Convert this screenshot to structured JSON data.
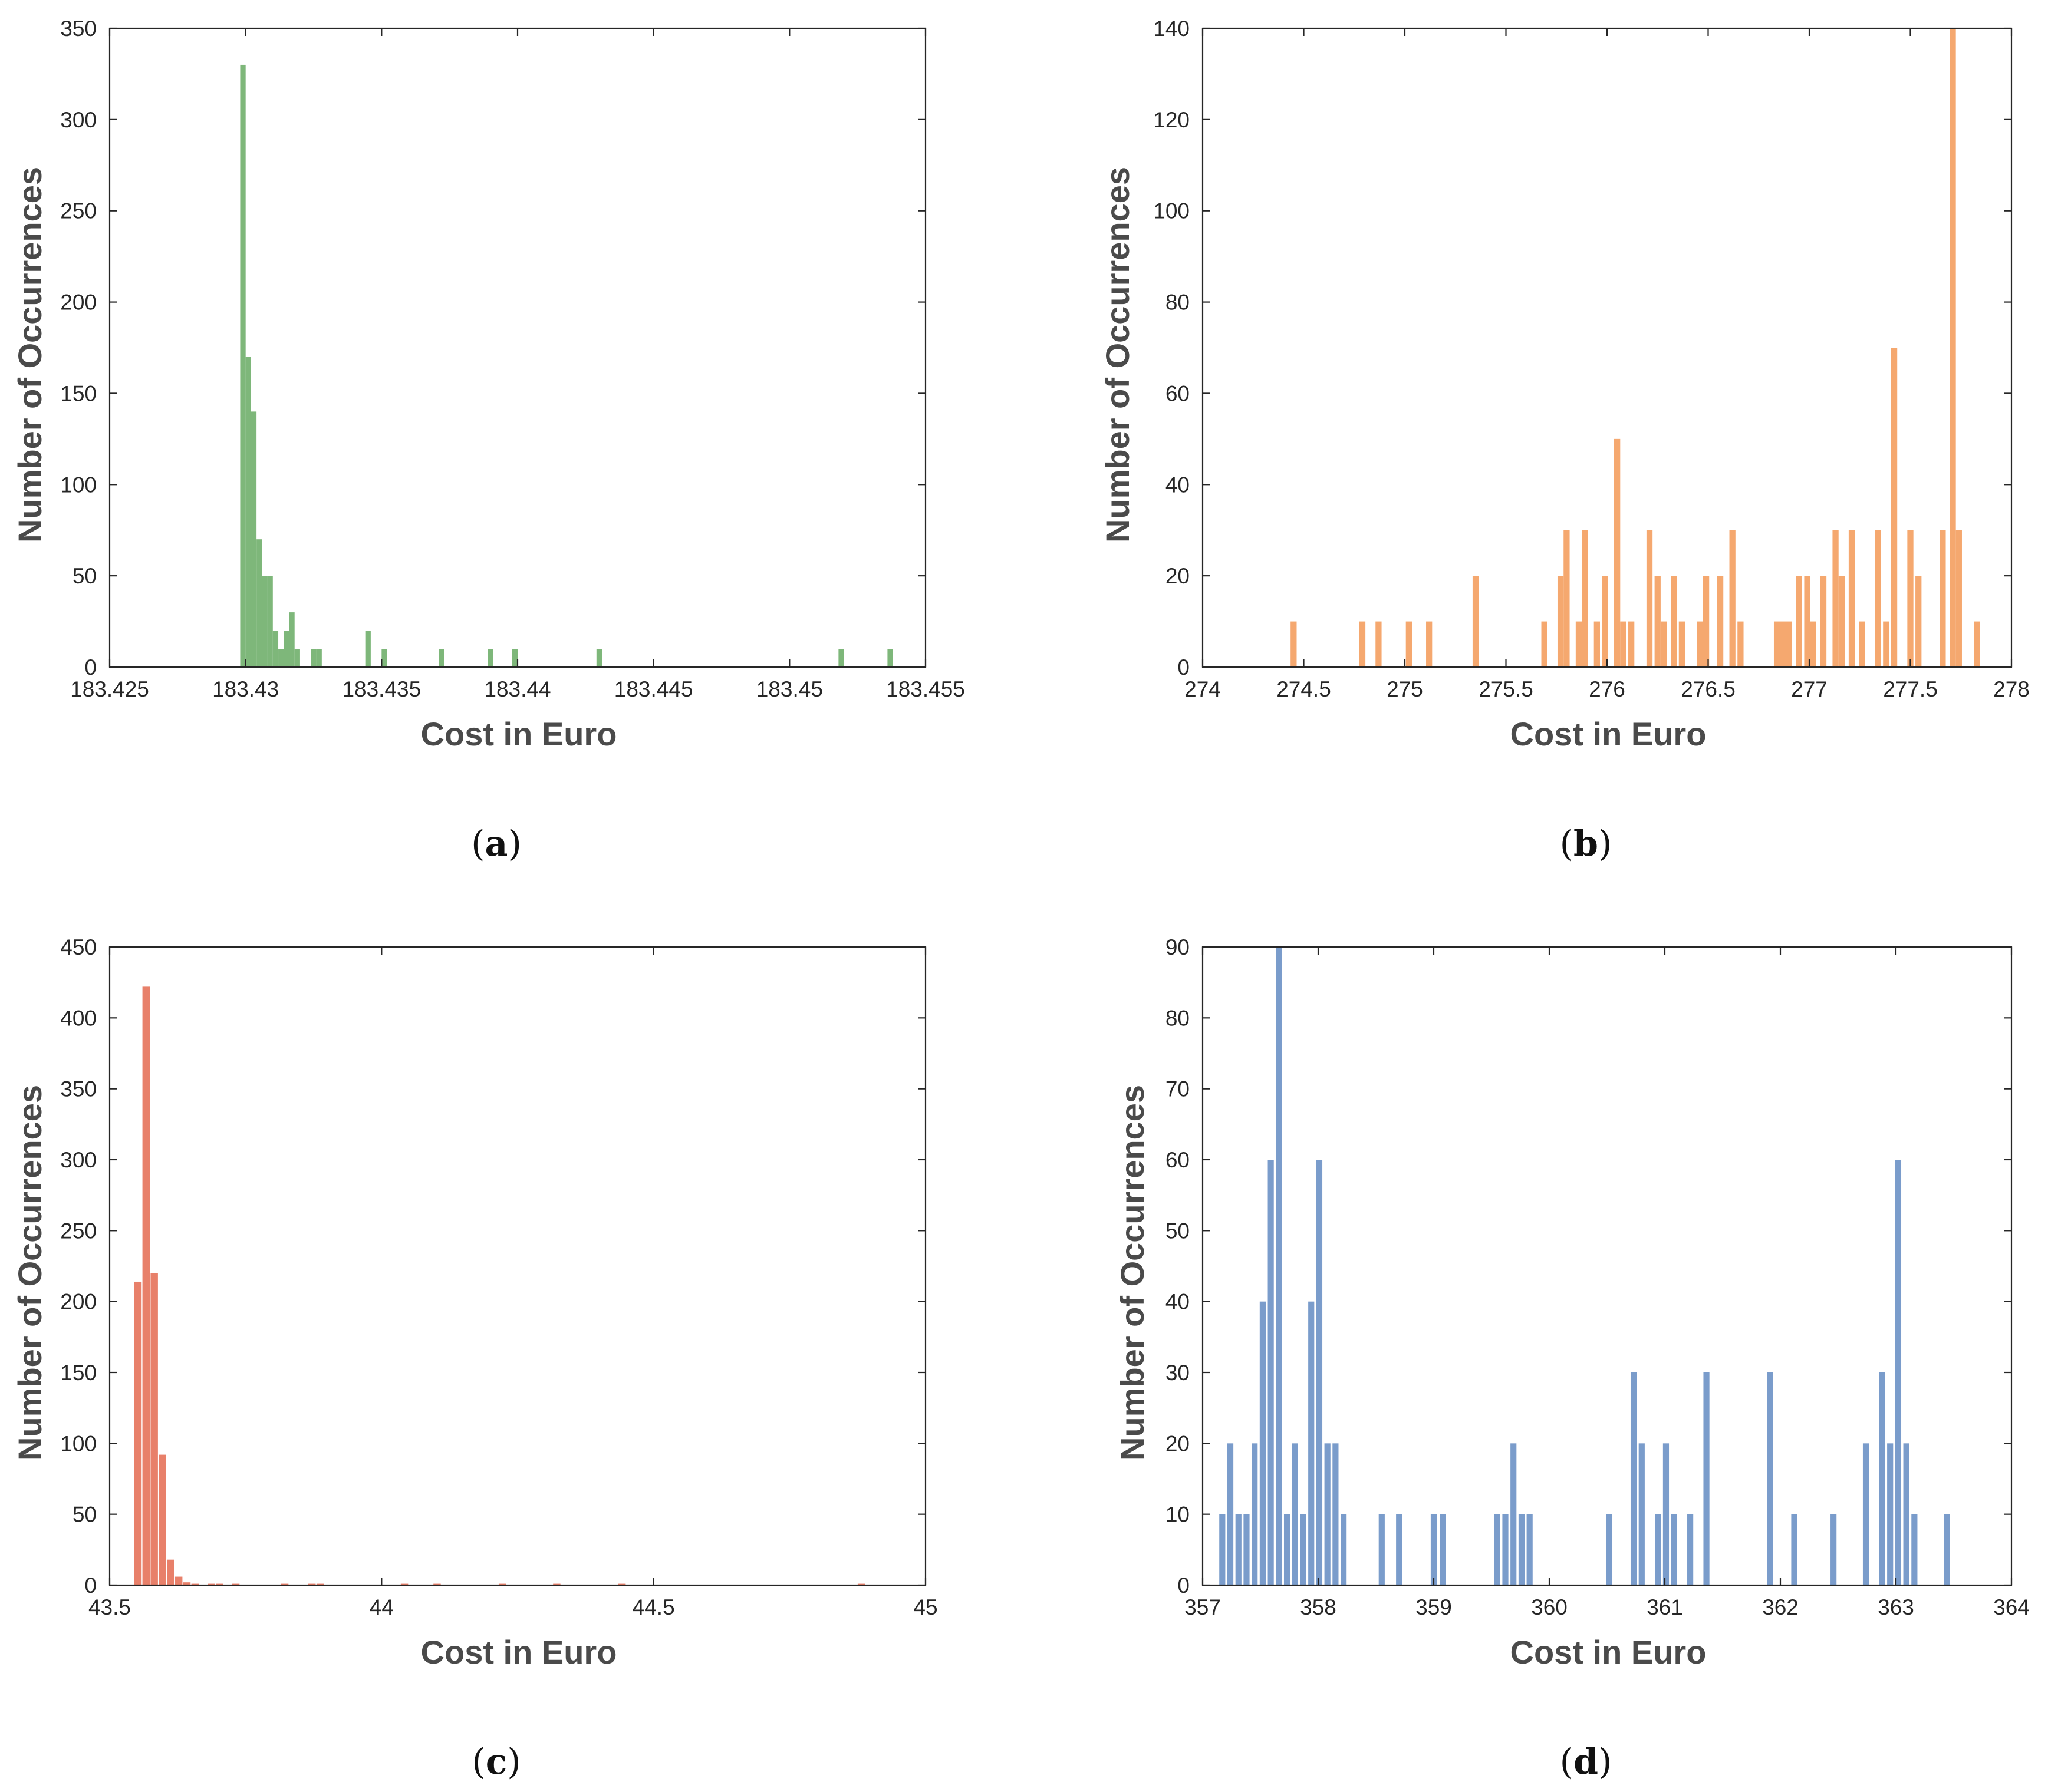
{
  "figure": {
    "panels": [
      {
        "caption_open": "(",
        "caption_letter": "a",
        "caption_close": ")"
      },
      {
        "caption_open": "(",
        "caption_letter": "b",
        "caption_close": ")"
      },
      {
        "caption_open": "(",
        "caption_letter": "c",
        "caption_close": ")"
      },
      {
        "caption_open": "(",
        "caption_letter": "d",
        "caption_close": ")"
      }
    ]
  },
  "chart_data": [
    {
      "type": "bar",
      "id": "a",
      "color": "#7eb77a",
      "xlabel": "Cost in Euro",
      "ylabel": "Number of Occurrences",
      "xlim": [
        183.425,
        183.455
      ],
      "ylim": [
        0,
        350
      ],
      "xticks": [
        "183.425",
        "183.43",
        "183.435",
        "183.44",
        "183.445",
        "183.45",
        "183.455"
      ],
      "xtick_values": [
        183.425,
        183.43,
        183.435,
        183.44,
        183.445,
        183.45,
        183.455
      ],
      "yticks": [
        "0",
        "50",
        "100",
        "150",
        "200",
        "250",
        "300",
        "350"
      ],
      "ytick_values": [
        0,
        50,
        100,
        150,
        200,
        250,
        300,
        350
      ],
      "bin_width": 0.0002,
      "x": [
        183.4299,
        183.4301,
        183.4303,
        183.4305,
        183.4307,
        183.4309,
        183.4311,
        183.4313,
        183.4315,
        183.4317,
        183.4319,
        183.4325,
        183.4327,
        183.4345,
        183.4351,
        183.4372,
        183.439,
        183.4399,
        183.443,
        183.4519,
        183.4537
      ],
      "values": [
        330,
        170,
        140,
        70,
        50,
        50,
        20,
        10,
        20,
        30,
        10,
        10,
        10,
        20,
        10,
        10,
        10,
        10,
        10,
        10,
        10
      ]
    },
    {
      "type": "bar",
      "id": "b",
      "color": "#f5a86f",
      "xlabel": "Cost in Euro",
      "ylabel": "Number of Occurrences",
      "xlim": [
        274,
        278
      ],
      "ylim": [
        0,
        140
      ],
      "xticks": [
        "274",
        "274.5",
        "275",
        "275.5",
        "276",
        "276.5",
        "277",
        "277.5",
        "278"
      ],
      "xtick_values": [
        274,
        274.5,
        275,
        275.5,
        276,
        276.5,
        277,
        277.5,
        278
      ],
      "yticks": [
        "0",
        "20",
        "40",
        "60",
        "80",
        "100",
        "120",
        "140"
      ],
      "ytick_values": [
        0,
        20,
        40,
        60,
        80,
        100,
        120,
        140
      ],
      "bin_width": 0.03,
      "x": [
        274.45,
        274.79,
        274.87,
        275.02,
        275.12,
        275.35,
        275.69,
        275.77,
        275.8,
        275.86,
        275.89,
        275.95,
        275.99,
        276.05,
        276.08,
        276.12,
        276.21,
        276.25,
        276.28,
        276.33,
        276.37,
        276.46,
        276.49,
        276.56,
        276.62,
        276.66,
        276.84,
        276.87,
        276.9,
        276.95,
        276.99,
        277.02,
        277.07,
        277.13,
        277.16,
        277.21,
        277.26,
        277.34,
        277.38,
        277.42,
        277.5,
        277.54,
        277.66,
        277.71,
        277.74,
        277.83
      ],
      "values": [
        10,
        10,
        10,
        10,
        10,
        20,
        10,
        20,
        30,
        10,
        30,
        10,
        20,
        50,
        10,
        10,
        30,
        20,
        10,
        20,
        10,
        10,
        20,
        20,
        30,
        10,
        10,
        10,
        10,
        20,
        20,
        10,
        20,
        30,
        20,
        30,
        10,
        30,
        10,
        70,
        30,
        20,
        30,
        140,
        30,
        10
      ]
    },
    {
      "type": "bar",
      "id": "c",
      "color": "#e8806a",
      "xlabel": "Cost in Euro",
      "ylabel": "Number of Occurrences",
      "xlim": [
        43.5,
        45
      ],
      "ylim": [
        0,
        450
      ],
      "xticks": [
        "43.5",
        "44",
        "44.5",
        "45"
      ],
      "xtick_values": [
        43.5,
        44,
        44.5,
        45
      ],
      "yticks": [
        "0",
        "50",
        "100",
        "150",
        "200",
        "250",
        "300",
        "350",
        "400",
        "450"
      ],
      "ytick_values": [
        0,
        50,
        100,
        150,
        200,
        250,
        300,
        350,
        400,
        450
      ],
      "bin_width": 0.0135,
      "x": [
        43.552,
        43.567,
        43.582,
        43.597,
        43.612,
        43.627,
        43.642,
        43.657,
        43.687,
        43.702,
        43.732,
        43.822,
        43.872,
        43.887,
        44.042,
        44.102,
        44.222,
        44.322,
        44.442,
        44.882
      ],
      "values": [
        214,
        422,
        220,
        92,
        18,
        6,
        2,
        1,
        1,
        1,
        1,
        1,
        1,
        1,
        1,
        1,
        1,
        1,
        1,
        1
      ]
    },
    {
      "type": "bar",
      "id": "d",
      "color": "#7a9ccb",
      "xlabel": "Cost in Euro",
      "ylabel": "Number of Occurrences",
      "xlim": [
        357,
        364
      ],
      "ylim": [
        0,
        90
      ],
      "xticks": [
        "357",
        "358",
        "359",
        "360",
        "361",
        "362",
        "363",
        "364"
      ],
      "xtick_values": [
        357,
        358,
        359,
        360,
        361,
        362,
        363,
        364
      ],
      "yticks": [
        "0",
        "10",
        "20",
        "30",
        "40",
        "50",
        "60",
        "70",
        "80",
        "90"
      ],
      "ytick_values": [
        0,
        10,
        20,
        30,
        40,
        50,
        60,
        70,
        80,
        90
      ],
      "bin_width": 0.052,
      "x": [
        357.17,
        357.24,
        357.31,
        357.38,
        357.45,
        357.52,
        357.59,
        357.66,
        357.73,
        357.8,
        357.87,
        357.94,
        358.01,
        358.08,
        358.15,
        358.22,
        358.55,
        358.7,
        359.0,
        359.08,
        359.55,
        359.62,
        359.69,
        359.76,
        359.83,
        360.52,
        360.73,
        360.8,
        360.94,
        361.01,
        361.08,
        361.22,
        361.36,
        361.91,
        362.12,
        362.46,
        362.74,
        362.88,
        362.95,
        363.02,
        363.09,
        363.16,
        363.44
      ],
      "values": [
        10,
        20,
        10,
        10,
        20,
        40,
        60,
        90,
        10,
        20,
        10,
        40,
        60,
        20,
        20,
        10,
        10,
        10,
        10,
        10,
        10,
        10,
        20,
        10,
        10,
        10,
        30,
        20,
        10,
        20,
        10,
        10,
        30,
        30,
        10,
        10,
        20,
        30,
        20,
        60,
        20,
        10,
        10
      ]
    }
  ]
}
